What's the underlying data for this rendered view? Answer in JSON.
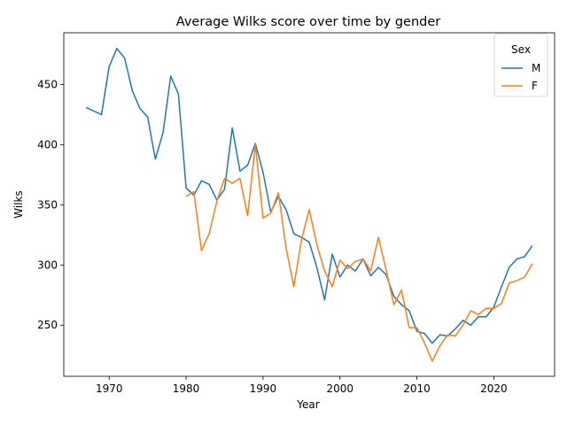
{
  "chart_data": {
    "type": "line",
    "title": "Average Wilks score over time by gender",
    "xlabel": "Year",
    "ylabel": "Wilks",
    "xlim": [
      1964.1,
      2027.9
    ],
    "ylim": [
      207.5,
      493
    ],
    "xticks": [
      1970,
      1980,
      1990,
      2000,
      2010,
      2020
    ],
    "yticks": [
      250,
      300,
      350,
      400,
      450
    ],
    "grid": false,
    "legend": {
      "title": "Sex",
      "placement": "top-right"
    },
    "series": [
      {
        "name": "M",
        "color": "#1f77b4",
        "points": [
          [
            1967,
            431
          ],
          [
            1969,
            425
          ],
          [
            1970,
            465
          ],
          [
            1971,
            480
          ],
          [
            1972,
            472
          ],
          [
            1973,
            445
          ],
          [
            1974,
            430
          ],
          [
            1975,
            423
          ],
          [
            1976,
            388
          ],
          [
            1977,
            410
          ],
          [
            1978,
            457
          ],
          [
            1979,
            442
          ],
          [
            1980,
            364
          ],
          [
            1981,
            358
          ],
          [
            1982,
            370
          ],
          [
            1983,
            367
          ],
          [
            1984,
            354
          ],
          [
            1985,
            363
          ],
          [
            1986,
            414
          ],
          [
            1987,
            378
          ],
          [
            1988,
            383
          ],
          [
            1989,
            401
          ],
          [
            1990,
            377
          ],
          [
            1991,
            344
          ],
          [
            1992,
            357
          ],
          [
            1993,
            346
          ],
          [
            1994,
            326
          ],
          [
            1995,
            323
          ],
          [
            1996,
            319
          ],
          [
            1997,
            298
          ],
          [
            1998,
            271
          ],
          [
            1999,
            309
          ],
          [
            2000,
            290
          ],
          [
            2001,
            300
          ],
          [
            2002,
            295
          ],
          [
            2003,
            305
          ],
          [
            2004,
            291
          ],
          [
            2005,
            298
          ],
          [
            2006,
            292
          ],
          [
            2007,
            274
          ],
          [
            2008,
            267
          ],
          [
            2009,
            262
          ],
          [
            2010,
            245
          ],
          [
            2011,
            243
          ],
          [
            2012,
            235
          ],
          [
            2013,
            242
          ],
          [
            2014,
            241
          ],
          [
            2015,
            247
          ],
          [
            2016,
            254
          ],
          [
            2017,
            250
          ],
          [
            2018,
            257
          ],
          [
            2019,
            257
          ],
          [
            2020,
            265
          ],
          [
            2021,
            282
          ],
          [
            2022,
            298
          ],
          [
            2023,
            305
          ],
          [
            2024,
            307
          ],
          [
            2025,
            316
          ]
        ]
      },
      {
        "name": "F",
        "color": "#ff7f0e",
        "points": [
          [
            1980,
            357
          ],
          [
            1981,
            361
          ],
          [
            1982,
            312
          ],
          [
            1983,
            326
          ],
          [
            1984,
            353
          ],
          [
            1985,
            372
          ],
          [
            1986,
            368
          ],
          [
            1987,
            372
          ],
          [
            1988,
            341
          ],
          [
            1989,
            400
          ],
          [
            1990,
            339
          ],
          [
            1991,
            343
          ],
          [
            1992,
            360
          ],
          [
            1993,
            314
          ],
          [
            1994,
            282
          ],
          [
            1995,
            321
          ],
          [
            1996,
            346
          ],
          [
            1997,
            317
          ],
          [
            1998,
            295
          ],
          [
            1999,
            282
          ],
          [
            2000,
            304
          ],
          [
            2001,
            297
          ],
          [
            2002,
            303
          ],
          [
            2003,
            305
          ],
          [
            2004,
            295
          ],
          [
            2005,
            323
          ],
          [
            2006,
            296
          ],
          [
            2007,
            267
          ],
          [
            2008,
            279
          ],
          [
            2009,
            248
          ],
          [
            2010,
            248
          ],
          [
            2011,
            235
          ],
          [
            2012,
            220
          ],
          [
            2013,
            233
          ],
          [
            2014,
            242
          ],
          [
            2015,
            241
          ],
          [
            2016,
            250
          ],
          [
            2017,
            262
          ],
          [
            2018,
            259
          ],
          [
            2019,
            264
          ],
          [
            2020,
            264
          ],
          [
            2021,
            268
          ],
          [
            2022,
            285
          ],
          [
            2023,
            287
          ],
          [
            2024,
            290
          ],
          [
            2025,
            301
          ]
        ]
      }
    ]
  }
}
